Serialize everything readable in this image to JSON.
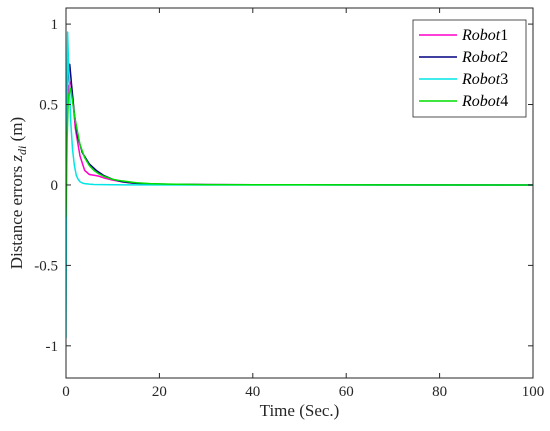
{
  "chart_data": {
    "type": "line",
    "title": "",
    "xlabel": "Time (Sec.)",
    "ylabel": {
      "prefix": "Distance errors ",
      "var": "z",
      "sub": "di",
      "suffix": " (m)"
    },
    "xlim": [
      0,
      100
    ],
    "ylim": [
      -1.2,
      1.1
    ],
    "xticks": [
      0,
      20,
      40,
      60,
      80,
      100
    ],
    "xtick_labels": [
      "0",
      "20",
      "40",
      "60",
      "80",
      "100"
    ],
    "yticks": [
      -1,
      -0.5,
      0,
      0.5,
      1
    ],
    "ytick_labels": [
      "-1",
      "-0.5",
      "0",
      "0.5",
      "1"
    ],
    "grid": false,
    "legend_position": "top-right",
    "series": [
      {
        "name_italic": "Robot",
        "name_suffix": "1",
        "color": "#ff00cc",
        "x": [
          0,
          0.3,
          0.6,
          1.0,
          1.5,
          2.0,
          3.0,
          4.0,
          5.0,
          6.0,
          7.0,
          8.0,
          10.0,
          13.0,
          16.0,
          20.0,
          30.0,
          50.0,
          100.0
        ],
        "y": [
          0.25,
          0.55,
          0.62,
          0.64,
          0.52,
          0.35,
          0.18,
          0.09,
          0.065,
          0.06,
          0.055,
          0.045,
          0.03,
          0.015,
          0.008,
          0.004,
          0.002,
          0.001,
          0.0
        ]
      },
      {
        "name_italic": "Robot",
        "name_suffix": "2",
        "color": "#000080",
        "x": [
          0,
          0.2,
          0.5,
          0.8,
          1.2,
          1.8,
          2.5,
          3.5,
          5.0,
          6.5,
          8.0,
          10.0,
          12.0,
          15.0,
          18.0,
          22.0,
          30.0,
          50.0,
          100.0
        ],
        "y": [
          0.3,
          0.6,
          0.72,
          0.75,
          0.62,
          0.44,
          0.3,
          0.2,
          0.13,
          0.09,
          0.06,
          0.035,
          0.02,
          0.01,
          0.006,
          0.004,
          0.002,
          0.001,
          0.0
        ]
      },
      {
        "name_italic": "Robot",
        "name_suffix": "3",
        "color": "#00e5e5",
        "x": [
          0,
          0.15,
          0.35,
          0.6,
          1.0,
          1.4,
          1.8,
          2.2,
          2.6,
          3.0,
          3.5,
          4.0,
          5.0,
          6.0,
          8.0,
          10.0,
          15.0,
          30.0,
          100.0
        ],
        "y": [
          -0.95,
          0.3,
          0.95,
          0.7,
          0.4,
          0.22,
          0.12,
          0.06,
          0.035,
          0.02,
          0.012,
          0.008,
          0.005,
          0.003,
          0.002,
          0.001,
          0.0005,
          0.0,
          0.0
        ]
      },
      {
        "name_italic": "Robot",
        "name_suffix": "4",
        "color": "#00dd00",
        "x": [
          0,
          0.25,
          0.5,
          1.0,
          1.5,
          2.0,
          3.0,
          4.0,
          5.0,
          6.0,
          7.0,
          8.0,
          10.0,
          12.0,
          15.0,
          18.0,
          22.0,
          30.0,
          50.0,
          100.0
        ],
        "y": [
          -0.2,
          0.3,
          0.55,
          0.6,
          0.5,
          0.4,
          0.25,
          0.17,
          0.12,
          0.09,
          0.07,
          0.055,
          0.035,
          0.025,
          0.014,
          0.008,
          0.005,
          0.002,
          0.001,
          0.0
        ]
      }
    ]
  }
}
